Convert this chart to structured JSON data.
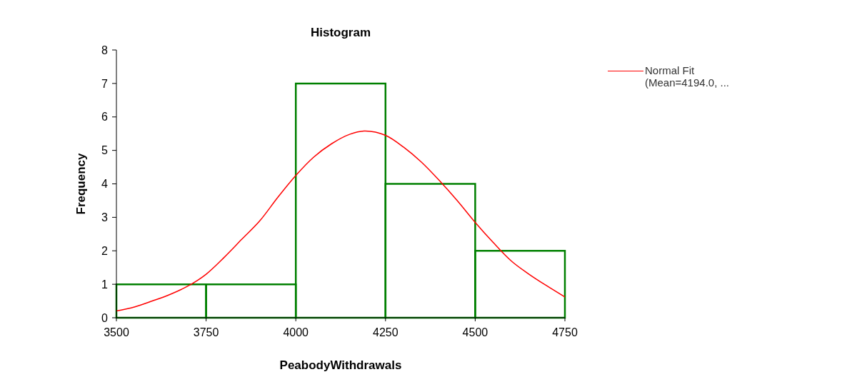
{
  "chart_data": {
    "type": "histogram",
    "title": "Histogram",
    "xlabel": "PeabodyWithdrawals",
    "ylabel": "Frequency",
    "bins": [
      3500,
      3750,
      4000,
      4250,
      4500,
      4750
    ],
    "values": [
      1,
      1,
      7,
      4,
      2
    ],
    "color": "#008000",
    "xlim": [
      3500,
      4750
    ],
    "xticks": [
      3500,
      3750,
      4000,
      4250,
      4500,
      4750
    ],
    "ylim": [
      0,
      8
    ],
    "yticks": [
      0,
      1,
      2,
      3,
      4,
      5,
      6,
      7,
      8
    ],
    "grid": false,
    "legend": "top right",
    "series": [
      {
        "name": "Normal Fit (Mean=4194.0, ...",
        "type": "line",
        "color": "#ff0000",
        "x": [
          3500,
          3550,
          3600,
          3650,
          3700,
          3750,
          3800,
          3850,
          3900,
          3950,
          4000,
          4050,
          4100,
          4150,
          4194,
          4250,
          4300,
          4350,
          4400,
          4450,
          4500,
          4550,
          4600,
          4650,
          4700,
          4750
        ],
        "values": [
          0.2,
          0.32,
          0.5,
          0.7,
          0.95,
          1.3,
          1.8,
          2.35,
          2.9,
          3.6,
          4.25,
          4.8,
          5.2,
          5.48,
          5.58,
          5.45,
          5.1,
          4.65,
          4.1,
          3.5,
          2.85,
          2.25,
          1.7,
          1.3,
          0.95,
          0.62
        ]
      }
    ]
  }
}
